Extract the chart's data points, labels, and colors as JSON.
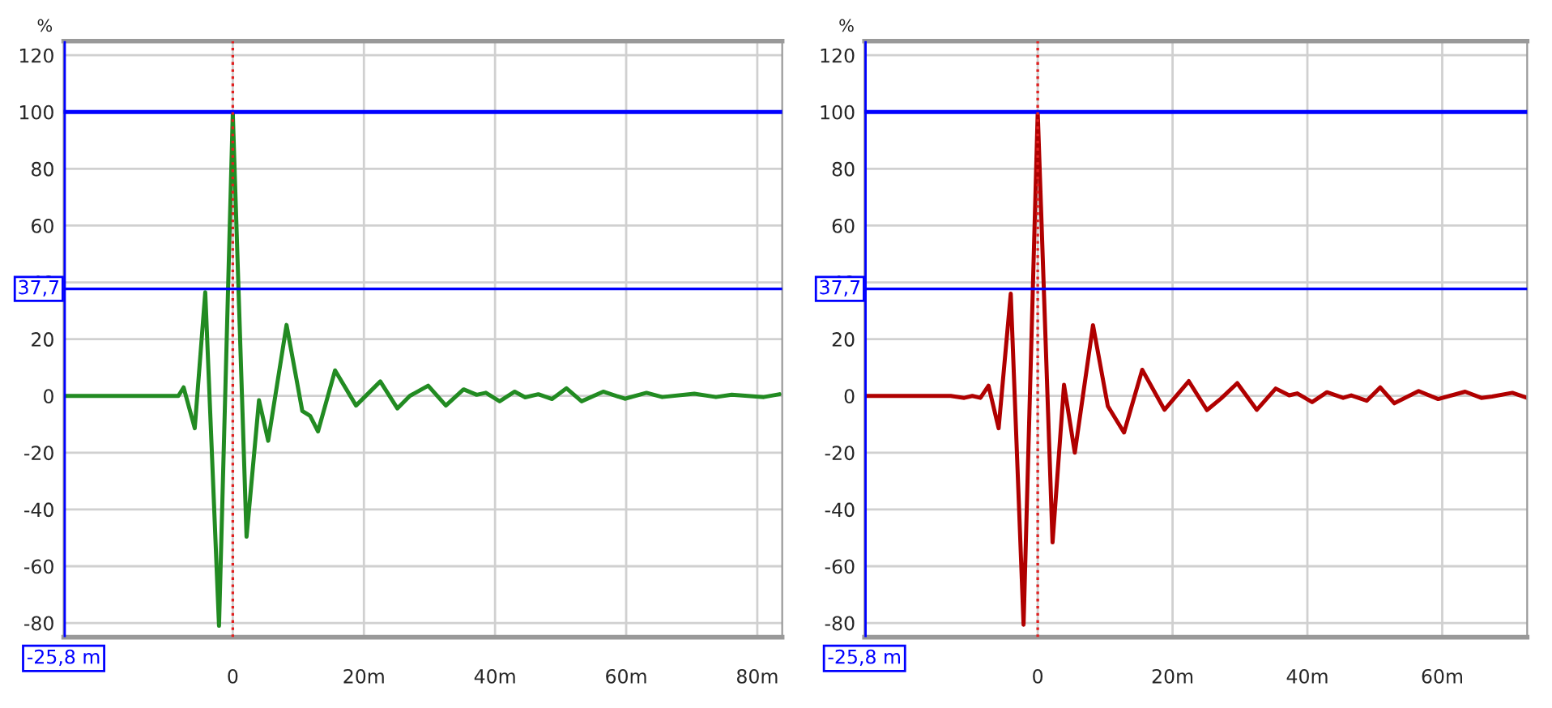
{
  "chart_data": [
    {
      "type": "line",
      "ylabel": "%",
      "xlim": [
        -25.8,
        83.8
      ],
      "ylim": [
        -85,
        125
      ],
      "xticks": [
        {
          "value": 0,
          "label": "0"
        },
        {
          "value": 20,
          "label": "20m"
        },
        {
          "value": 40,
          "label": "40m"
        },
        {
          "value": 60,
          "label": "60m"
        },
        {
          "value": 80,
          "label": "80m"
        }
      ],
      "yticks": [
        -80,
        -60,
        -40,
        -20,
        0,
        20,
        40,
        60,
        80,
        100,
        120
      ],
      "grid": true,
      "ref_lines": [
        {
          "axis": "y",
          "value": 100,
          "color": "#0000ff",
          "line_style": "solid"
        },
        {
          "axis": "y",
          "value": 37.7,
          "label": "37,7",
          "color": "#0000ff",
          "line_style": "solid"
        },
        {
          "axis": "x",
          "value": 0,
          "color": "#e02020",
          "line_style": "dotted"
        },
        {
          "axis": "x",
          "value": -25.8,
          "label": "-25,8 m",
          "color": "#0000ff",
          "line_style": "solid"
        }
      ],
      "series": [
        {
          "color": "#228b22",
          "x": [
            -25.8,
            -11.6,
            -8.3,
            -7.5,
            -5.8,
            -4.2,
            -2.1,
            0,
            2.1,
            4.0,
            5.4,
            8.2,
            10.6,
            11.8,
            13.0,
            15.6,
            18.8,
            22.5,
            25.1,
            27.0,
            29.8,
            32.5,
            35.2,
            37.2,
            38.6,
            40.7,
            43.0,
            44.6,
            46.6,
            48.7,
            50.9,
            53.2,
            56.5,
            59.8,
            63.1,
            65.5,
            70.4,
            73.7,
            76.1,
            81.0,
            83.4
          ],
          "values": [
            0,
            0,
            0,
            3,
            -11.4,
            36.5,
            -81,
            99.6,
            -49.6,
            -1.5,
            -15.8,
            25,
            -5.3,
            -7,
            -12.5,
            9,
            -3.4,
            5.1,
            -4.4,
            0,
            3.6,
            -3.4,
            2.3,
            0.4,
            1.1,
            -1.9,
            1.5,
            -0.5,
            0.6,
            -1.1,
            2.7,
            -1.9,
            1.5,
            -1,
            1.1,
            -0.4,
            0.8,
            -0.4,
            0.4,
            -0.4,
            0.6
          ]
        }
      ]
    },
    {
      "type": "line",
      "ylabel": "%",
      "xlim": [
        -25.7,
        72.6
      ],
      "ylim": [
        -85,
        125
      ],
      "xticks": [
        {
          "value": 0,
          "label": "0"
        },
        {
          "value": 20,
          "label": "20m"
        },
        {
          "value": 40,
          "label": "40m"
        },
        {
          "value": 60,
          "label": "60m"
        }
      ],
      "yticks": [
        -80,
        -60,
        -40,
        -20,
        0,
        20,
        40,
        60,
        80,
        100,
        120
      ],
      "grid": true,
      "ref_lines": [
        {
          "axis": "y",
          "value": 100,
          "color": "#0000ff",
          "line_style": "solid"
        },
        {
          "axis": "y",
          "value": 37.7,
          "label": "37,7",
          "color": "#0000ff",
          "line_style": "solid"
        },
        {
          "axis": "x",
          "value": 0,
          "color": "#e02020",
          "line_style": "dotted"
        },
        {
          "axis": "x",
          "value": -25.7,
          "label": "-25,8 m",
          "color": "#0000ff",
          "line_style": "solid"
        }
      ],
      "series": [
        {
          "color": "#b00000",
          "x": [
            -25.5,
            -12.9,
            -10.9,
            -9.7,
            -8.5,
            -7.3,
            -5.8,
            -4.0,
            -2.1,
            0,
            2.2,
            3.9,
            5.5,
            8.2,
            10.4,
            12.8,
            15.5,
            18.8,
            22.4,
            25.1,
            27.2,
            29.6,
            32.5,
            35.3,
            37.3,
            38.5,
            40.7,
            42.9,
            45.3,
            46.5,
            48.8,
            50.8,
            52.9,
            56.5,
            59.4,
            63.4,
            65.8,
            67.4,
            70.4,
            72.6
          ],
          "values": [
            0,
            0,
            -0.7,
            0,
            -0.7,
            3.6,
            -11.4,
            36,
            -80.6,
            100,
            -51.6,
            3.9,
            -20,
            24.9,
            -3.6,
            -12.9,
            9.2,
            -4.9,
            5.2,
            -5,
            -0.9,
            4.5,
            -4.9,
            2.6,
            0.2,
            0.9,
            -2.2,
            1.3,
            -0.7,
            0.2,
            -1.7,
            3,
            -2.6,
            1.7,
            -1.1,
            1.5,
            -0.7,
            -0.2,
            1.1,
            -0.7
          ]
        }
      ]
    }
  ]
}
